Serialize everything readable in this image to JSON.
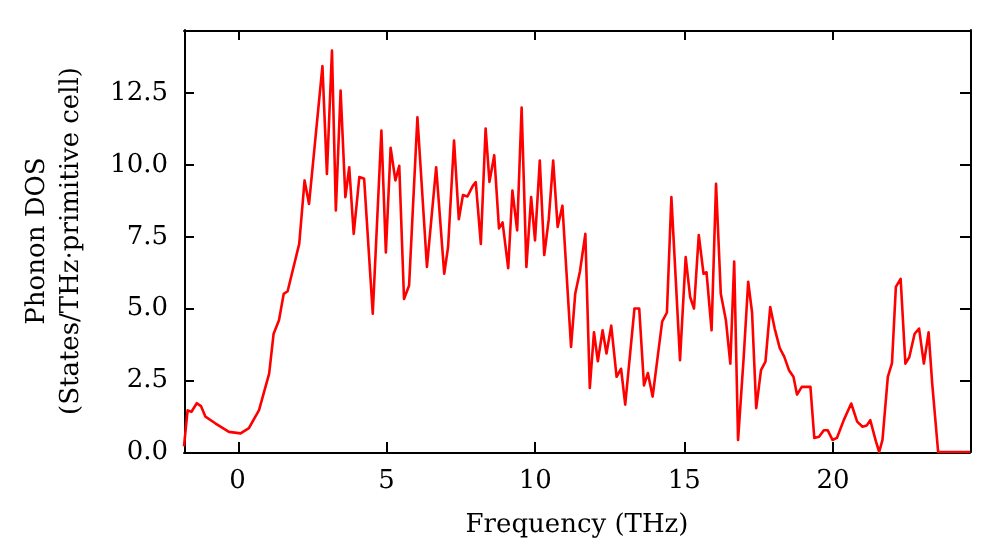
{
  "chart_data": {
    "type": "line",
    "xlabel": "Frequency (THz)",
    "ylabel": "Phonon DOS\n(States/THz·primitive cell)",
    "xlim": [
      -1.8,
      24.6
    ],
    "xticks": [
      0,
      5,
      10,
      15,
      20
    ],
    "ylim": [
      0,
      14.7
    ],
    "yticks": [
      {
        "value": 0,
        "label": "0.0"
      },
      2.5,
      {
        "value": 5,
        "label": "5.0"
      },
      7.5,
      {
        "value": 10,
        "label": "10.0"
      },
      12.5
    ],
    "grid": false,
    "marker": "none",
    "line_style": "solid",
    "series": [
      {
        "color": "#ff0000",
        "x": [
          -1.8,
          -1.68,
          -1.55,
          -1.37,
          -1.23,
          -1.08,
          -0.75,
          -0.29,
          0.1,
          0.38,
          0.72,
          1.06,
          1.21,
          1.39,
          1.55,
          1.68,
          2.07,
          2.25,
          2.4,
          2.85,
          3.0,
          3.17,
          3.3,
          3.46,
          3.62,
          3.75,
          3.9,
          4.09,
          4.25,
          4.54,
          4.83,
          4.98,
          5.14,
          5.3,
          5.43,
          5.59,
          5.76,
          6.04,
          6.36,
          6.67,
          6.94,
          7.07,
          7.27,
          7.43,
          7.57,
          7.72,
          7.9,
          8.0,
          8.17,
          8.33,
          8.46,
          8.62,
          8.78,
          8.9,
          9.09,
          9.23,
          9.39,
          9.54,
          9.7,
          9.86,
          9.99,
          10.15,
          10.3,
          10.45,
          10.6,
          10.75,
          10.91,
          11.2,
          11.34,
          11.5,
          11.68,
          11.83,
          11.97,
          12.1,
          12.26,
          12.39,
          12.55,
          12.73,
          12.88,
          13.02,
          13.33,
          13.49,
          13.65,
          13.78,
          13.94,
          14.26,
          14.42,
          14.57,
          14.86,
          15.05,
          15.2,
          15.33,
          15.49,
          15.65,
          15.75,
          15.92,
          16.07,
          16.23,
          16.4,
          16.55,
          16.68,
          16.81,
          17.0,
          17.15,
          17.28,
          17.42,
          17.58,
          17.73,
          17.89,
          18.04,
          18.21,
          18.36,
          18.52,
          18.67,
          18.79,
          18.95,
          19.24,
          19.37,
          19.53,
          19.69,
          19.82,
          19.98,
          20.13,
          20.36,
          20.61,
          20.81,
          20.99,
          21.13,
          21.25,
          21.44,
          21.55,
          21.66,
          21.84,
          21.98,
          22.11,
          22.27,
          22.43,
          22.56,
          22.74,
          22.89,
          23.05,
          23.21,
          23.33,
          23.53,
          24.6
        ],
        "values": [
          0.2,
          1.45,
          1.4,
          1.7,
          1.6,
          1.23,
          1.0,
          0.7,
          0.65,
          0.83,
          1.46,
          2.73,
          4.12,
          4.59,
          5.51,
          5.6,
          7.25,
          9.46,
          8.64,
          13.44,
          9.69,
          13.98,
          8.41,
          12.59,
          8.88,
          9.92,
          7.6,
          9.58,
          9.52,
          4.82,
          11.2,
          6.95,
          10.6,
          9.46,
          9.97,
          5.33,
          5.8,
          11.66,
          6.45,
          9.92,
          6.21,
          7.14,
          10.85,
          8.11,
          8.95,
          8.9,
          9.27,
          9.4,
          7.25,
          11.27,
          9.41,
          10.34,
          7.79,
          8.0,
          6.4,
          9.11,
          7.72,
          12.0,
          6.45,
          8.88,
          7.37,
          10.15,
          6.86,
          8.1,
          10.15,
          7.84,
          8.58,
          3.66,
          5.51,
          6.3,
          7.6,
          2.23,
          4.17,
          3.16,
          4.24,
          3.43,
          4.4,
          2.62,
          2.9,
          1.65,
          5.0,
          5.0,
          2.32,
          2.75,
          1.93,
          4.54,
          4.86,
          8.88,
          3.2,
          6.79,
          5.4,
          5.0,
          7.56,
          6.21,
          6.26,
          4.24,
          9.34,
          5.51,
          4.6,
          3.08,
          6.63,
          0.42,
          3.32,
          5.93,
          4.86,
          1.53,
          2.85,
          3.15,
          5.05,
          4.3,
          3.62,
          3.32,
          2.85,
          2.62,
          2.0,
          2.27,
          2.27,
          0.49,
          0.53,
          0.76,
          0.76,
          0.42,
          0.49,
          1.11,
          1.69,
          1.06,
          0.88,
          0.92,
          1.11,
          0.37,
          0,
          0.42,
          2.62,
          3.1,
          5.75,
          6.03,
          3.08,
          3.3,
          4.12,
          4.3,
          3.08,
          4.17,
          2.39,
          0,
          0
        ]
      }
    ]
  }
}
